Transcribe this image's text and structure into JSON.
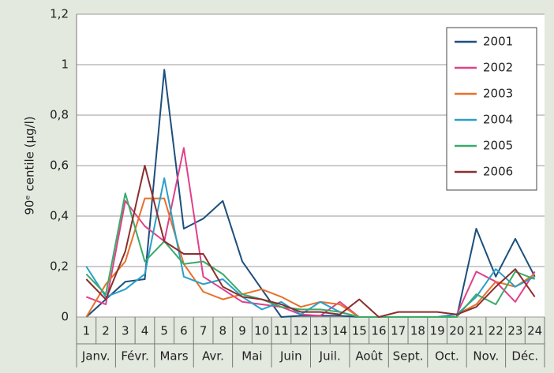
{
  "chart_data": {
    "type": "line",
    "y_label": "90ᵉ centile (µg/l)",
    "categories": [
      "1",
      "2",
      "3",
      "4",
      "5",
      "6",
      "7",
      "8",
      "9",
      "10",
      "11",
      "12",
      "13",
      "14",
      "15",
      "16",
      "17",
      "18",
      "19",
      "20",
      "21",
      "22",
      "23",
      "24"
    ],
    "month_labels": [
      "Janv.",
      "Févr.",
      "Mars",
      "Avr.",
      "Mai",
      "Juin",
      "Juil.",
      "Août",
      "Sept.",
      "Oct.",
      "Nov.",
      "Déc."
    ],
    "ylim": [
      0,
      1.2
    ],
    "yticks": [
      0,
      {
        "value": 0.2,
        "label": "0,2"
      },
      {
        "value": 0.4,
        "label": "0,4"
      },
      {
        "value": 0.6,
        "label": "0,6"
      },
      {
        "value": 0.8,
        "label": "0,8"
      },
      1,
      {
        "value": 1.2,
        "label": "1,2"
      }
    ],
    "grid": true,
    "legend": "top-right",
    "series": [
      {
        "name": "2001",
        "color": "#1d4f7c",
        "values": [
          0,
          0.07,
          0.14,
          0.15,
          0.98,
          0.35,
          0.39,
          0.46,
          0.22,
          0.11,
          0,
          0.005,
          0.005,
          0.005,
          0,
          0,
          0,
          0,
          0,
          0,
          0.35,
          0.16,
          0.31,
          0.16
        ]
      },
      {
        "name": "2002",
        "color": "#e0408a",
        "values": [
          0.08,
          0.05,
          0.46,
          0.36,
          0.3,
          0.67,
          0.16,
          0.11,
          0.06,
          0.05,
          0.04,
          0.01,
          0.005,
          0.06,
          0,
          0,
          0,
          0,
          0,
          0.01,
          0.18,
          0.14,
          0.06,
          0.18
        ]
      },
      {
        "name": "2003",
        "color": "#e8702a",
        "values": [
          0,
          0.13,
          0.22,
          0.47,
          0.47,
          0.21,
          0.1,
          0.07,
          0.09,
          0.11,
          0.08,
          0.04,
          0.06,
          0.05,
          0,
          0,
          0,
          0,
          0,
          0.01,
          0.05,
          0.14,
          0.12,
          0.17
        ]
      },
      {
        "name": "2004",
        "color": "#2a9fc8",
        "values": [
          0.2,
          0.08,
          0.11,
          0.17,
          0.55,
          0.16,
          0.13,
          0.15,
          0.08,
          0.03,
          0.06,
          0.01,
          0.06,
          0.02,
          0,
          0,
          0,
          0,
          0,
          0.01,
          0.08,
          0.19,
          0.12,
          0.16
        ]
      },
      {
        "name": "2005",
        "color": "#3aaa6a",
        "values": [
          0.17,
          0.09,
          0.49,
          0.22,
          0.3,
          0.21,
          0.22,
          0.17,
          0.09,
          0.07,
          0.04,
          0.03,
          0.03,
          0.02,
          0,
          0,
          0,
          0,
          0,
          0,
          0.09,
          0.05,
          0.18,
          0.15
        ]
      },
      {
        "name": "2006",
        "color": "#8b2e2e",
        "values": [
          0.15,
          0.07,
          0.26,
          0.6,
          0.3,
          0.25,
          0.25,
          0.12,
          0.08,
          0.07,
          0.05,
          0.02,
          0.02,
          0.01,
          0.07,
          0,
          0.02,
          0.02,
          0.02,
          0.01,
          0.04,
          0.12,
          0.19,
          0.08
        ]
      }
    ]
  }
}
